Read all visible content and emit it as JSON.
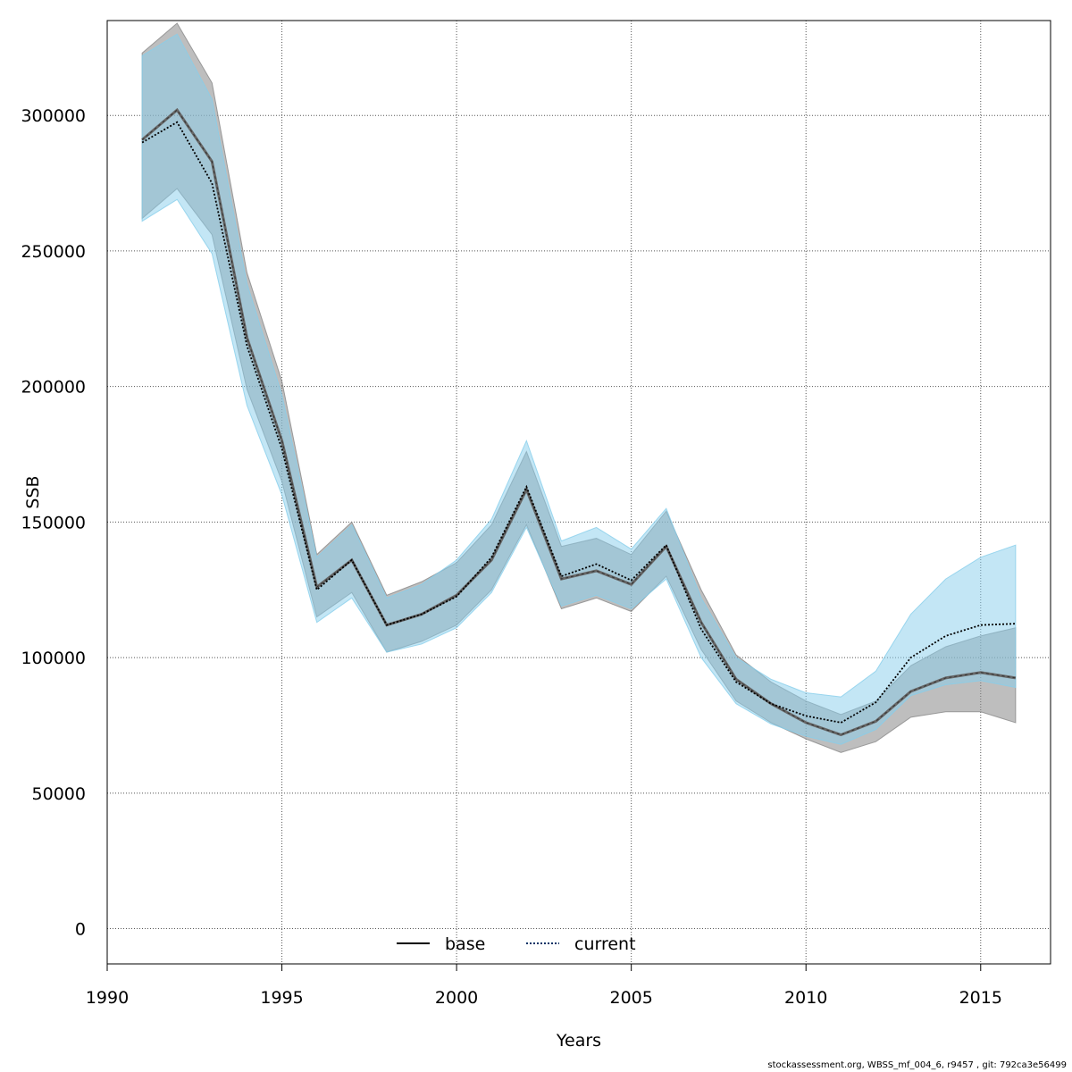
{
  "chart_data": {
    "type": "area",
    "xlabel": "Years",
    "ylabel": "SSB",
    "xlim": [
      1990,
      2017
    ],
    "ylim": [
      -13000,
      335000
    ],
    "xticks": [
      1990,
      1995,
      2000,
      2005,
      2010,
      2015
    ],
    "yticks": [
      0,
      50000,
      100000,
      150000,
      200000,
      250000,
      300000
    ],
    "grid": true,
    "legend_position": "bottom-center",
    "x": [
      1991,
      1992,
      1993,
      1994,
      1995,
      1996,
      1997,
      1998,
      1999,
      2000,
      2001,
      2002,
      2003,
      2004,
      2005,
      2006,
      2007,
      2008,
      2009,
      2010,
      2011,
      2012,
      2013,
      2014,
      2015,
      2016
    ],
    "series": [
      {
        "name": "base",
        "line_style": "solid",
        "line_color": "#000000",
        "band_color": "#888888",
        "values": [
          291000,
          302000,
          283000,
          218000,
          180000,
          126000,
          136000,
          112000,
          116000,
          123000,
          136000,
          162000,
          129000,
          132000,
          127000,
          141000,
          113000,
          92000,
          83000,
          76000,
          71500,
          76500,
          87500,
          92500,
          94500,
          92500
        ],
        "upper": [
          323000,
          334000,
          312000,
          242000,
          202000,
          138000,
          150000,
          123000,
          128000,
          135000,
          149000,
          176000,
          141000,
          144000,
          138000,
          154000,
          125000,
          101000,
          91000,
          84000,
          79000,
          84000,
          97000,
          104000,
          108000,
          111000
        ],
        "lower": [
          262000,
          273000,
          256000,
          199000,
          165000,
          115000,
          124000,
          102000,
          106000,
          112000,
          125000,
          149000,
          118000,
          122000,
          117000,
          130000,
          103000,
          84000,
          76000,
          70000,
          65000,
          69000,
          78000,
          80000,
          80000,
          76000
        ]
      },
      {
        "name": "current",
        "line_style": "dotted",
        "line_color": "#003366",
        "band_color": "#87CEEB",
        "values": [
          290000,
          297500,
          275000,
          215000,
          177000,
          125000,
          136000,
          112000,
          116000,
          122500,
          137000,
          163000,
          130000,
          134500,
          128500,
          141500,
          110500,
          91000,
          83000,
          78500,
          76000,
          83500,
          100000,
          108000,
          112000,
          112500
        ],
        "upper": [
          322000,
          330000,
          306000,
          238000,
          197000,
          137000,
          149000,
          122000,
          127000,
          136000,
          151000,
          180000,
          143000,
          148000,
          140000,
          155000,
          122000,
          100000,
          92000,
          87000,
          85500,
          95000,
          116000,
          129000,
          137000,
          141500
        ],
        "lower": [
          261000,
          269000,
          249000,
          193000,
          160000,
          113000,
          122000,
          102000,
          105000,
          111000,
          124000,
          148000,
          119000,
          123000,
          118000,
          129000,
          100000,
          83000,
          75500,
          71000,
          68000,
          73500,
          86000,
          90000,
          91500,
          89000
        ]
      }
    ]
  },
  "footer": {
    "text": "stockassessment.org, WBSS_mf_004_6, r9457 , git: 792ca3e56499"
  }
}
